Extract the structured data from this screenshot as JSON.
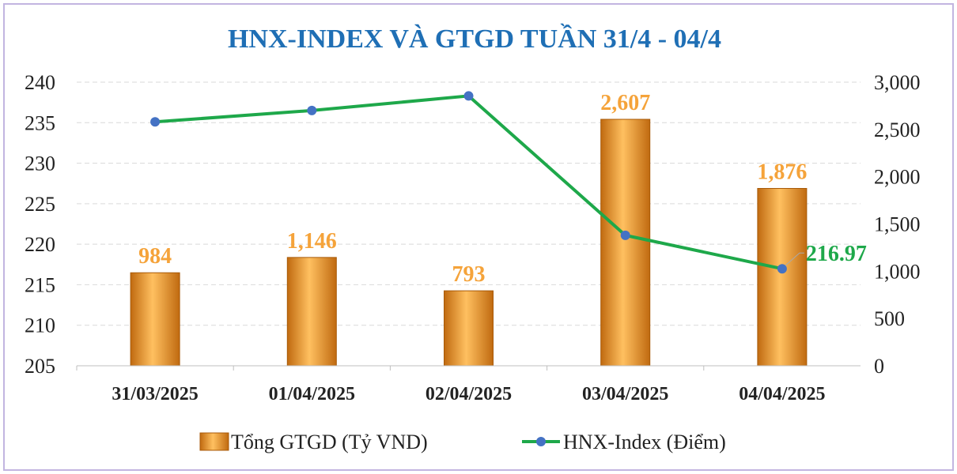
{
  "chart_data": {
    "type": "bar+line",
    "title": "HNX-INDEX VÀ GTGD TUẦN 31/4 -  04/4",
    "categories": [
      "31/03/2025",
      "01/04/2025",
      "02/04/2025",
      "03/04/2025",
      "04/04/2025"
    ],
    "series": [
      {
        "name": "Tổng GTGD (Tỷ VND)",
        "type": "bar",
        "axis": "right",
        "values": [
          984,
          1146,
          793,
          2607,
          1876
        ],
        "labels": [
          "984",
          "1,146",
          "793",
          "2,607",
          "1,876"
        ],
        "color": "#f5a33a"
      },
      {
        "name": "HNX-Index (Điểm)",
        "type": "line",
        "axis": "left",
        "values": [
          235.1,
          236.5,
          238.3,
          221.1,
          216.97
        ],
        "color": "#1ea84a",
        "marker_color": "#4472c4",
        "end_label": "216.97"
      }
    ],
    "left_axis": {
      "range": [
        205,
        240
      ],
      "ticks": [
        "205",
        "210",
        "215",
        "220",
        "225",
        "230",
        "235",
        "240"
      ]
    },
    "right_axis": {
      "range": [
        0,
        3000
      ],
      "ticks": [
        "0",
        "500",
        "1,000",
        "1,500",
        "2,000",
        "2,500",
        "3,000"
      ]
    },
    "grid": true,
    "legend": "bottom",
    "colors": {
      "title": "#1f6fb5",
      "bar_label": "#f5a33a",
      "line_label": "#1ea84a"
    }
  }
}
